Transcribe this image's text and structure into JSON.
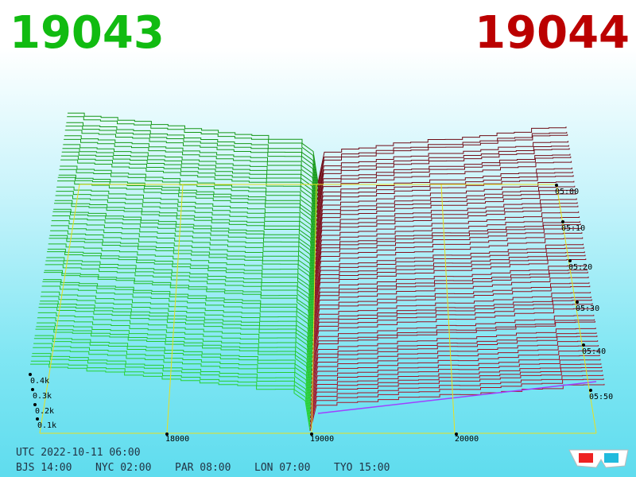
{
  "header": {
    "bid": "19043",
    "ask": "19044"
  },
  "price_axis": [
    "18000",
    "19000",
    "20000"
  ],
  "depth_axis": [
    "0.4k",
    "0.3k",
    "0.2k",
    "0.1k"
  ],
  "time_axis": [
    "05:00",
    "05:10",
    "05:20",
    "05:30",
    "05:40",
    "05:50"
  ],
  "footer": {
    "utc": "UTC 2022-10-11 06:00",
    "zones": [
      "BJS 14:00",
      "NYC 02:00",
      "PAR 08:00",
      "LON 07:00",
      "TYO 15:00"
    ]
  }
}
